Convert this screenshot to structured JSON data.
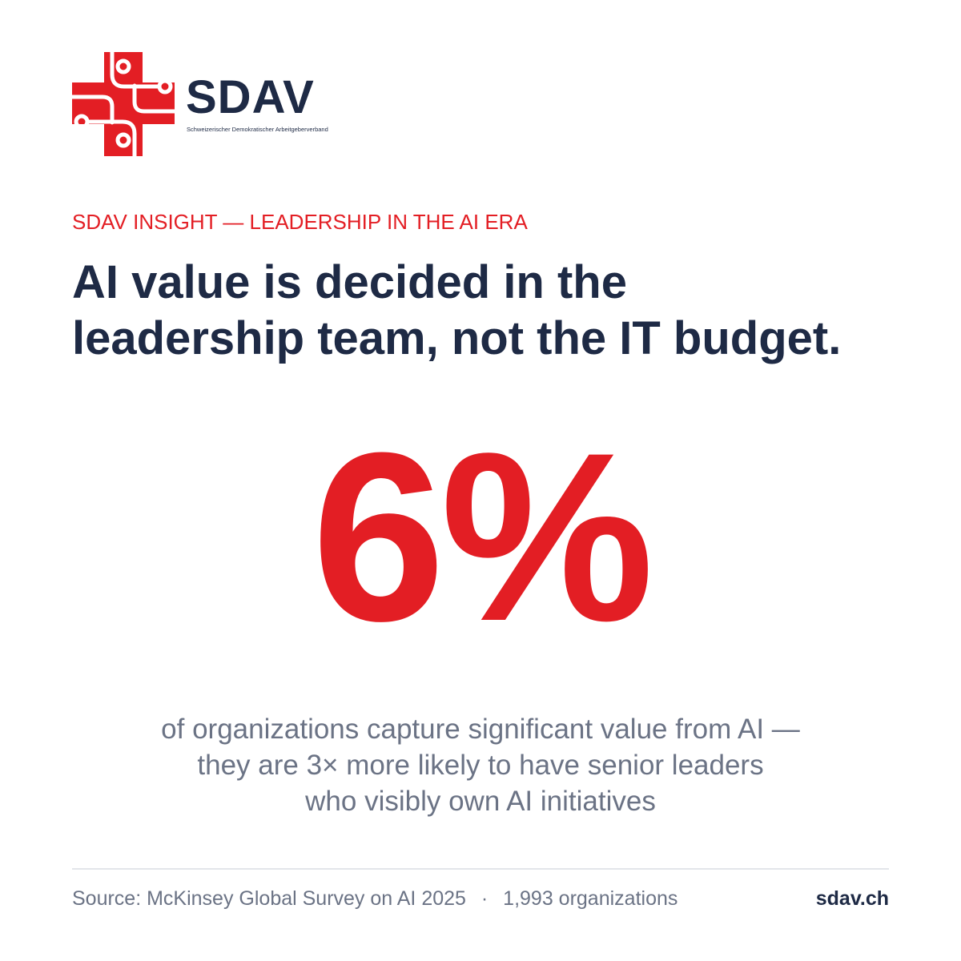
{
  "logo": {
    "name": "SDAV",
    "tagline": "Schweizerischer Demokratischer Arbeitgeberverband"
  },
  "kicker": "SDAV INSIGHT — LEADERSHIP IN THE AI ERA",
  "headline": [
    "AI value is decided in the",
    "leadership team, not the IT budget."
  ],
  "stat": "6%",
  "description": [
    "of organizations capture significant value from AI —",
    "they are 3× more likely to have senior leaders",
    "who visibly own AI initiatives"
  ],
  "footer": {
    "source": "Source: McKinsey Global Survey on AI 2025",
    "separator": "·",
    "sample": "1,993 organizations",
    "website": "sdav.ch"
  }
}
